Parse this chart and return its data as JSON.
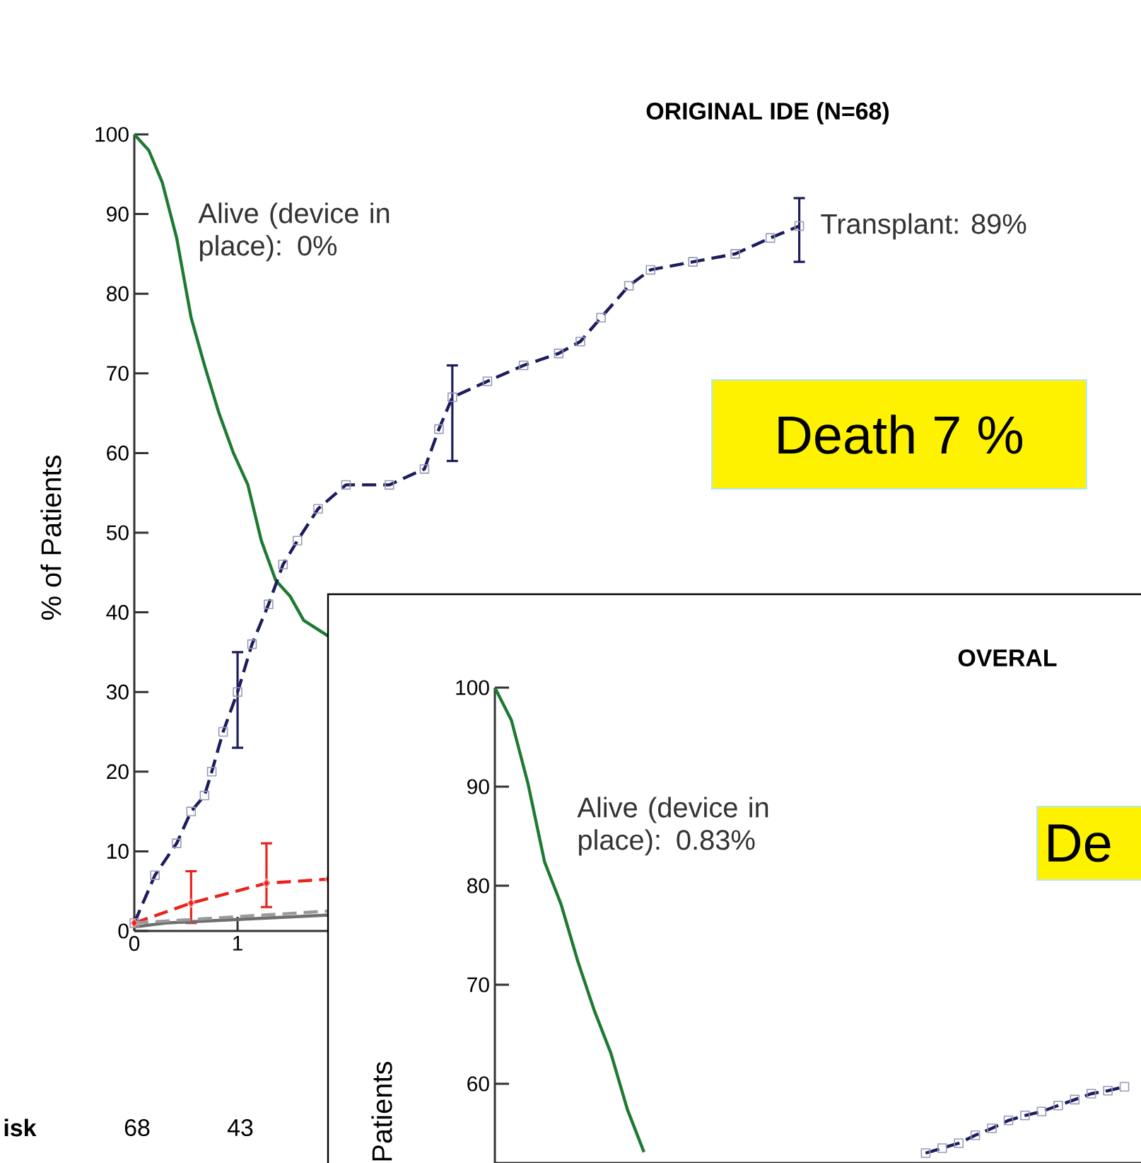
{
  "chart_data": [
    {
      "type": "line",
      "title": "ORIGINAL IDE (N=68)",
      "ylabel": "% of Patients",
      "xlim": [
        0,
        9.75
      ],
      "ylim": [
        0,
        100
      ],
      "xticks": [
        0,
        1
      ],
      "yticks": [
        0,
        10,
        20,
        30,
        40,
        50,
        60,
        70,
        80,
        90,
        100
      ],
      "annotations": [
        "Alive (device in place): 0%",
        "Transplant: 89%",
        "Death 7 %",
        "isk",
        "68",
        "43"
      ],
      "series": [
        {
          "color": "#1e7a32",
          "line_style": "solid",
          "marker": "none",
          "x": [
            0,
            0.14,
            0.27,
            0.41,
            0.55,
            0.68,
            0.82,
            0.96,
            1.1,
            1.23,
            1.37,
            1.51,
            1.64,
            1.88
          ],
          "values": [
            100,
            98,
            94,
            87,
            77,
            71,
            65,
            60,
            56,
            49,
            44,
            42,
            39,
            37
          ]
        },
        {
          "color": "#1c1c5e",
          "line_style": "dashed",
          "marker": "square",
          "x": [
            0,
            0.2,
            0.41,
            0.55,
            0.68,
            0.75,
            0.86,
            1.0,
            1.14,
            1.3,
            1.44,
            1.58,
            1.78,
            2.05,
            2.47,
            2.81,
            2.95,
            3.08,
            3.42,
            3.77,
            4.11,
            4.32,
            4.52,
            4.79,
            5.0,
            5.41,
            5.82,
            6.16,
            6.44
          ],
          "values": [
            1,
            7,
            11,
            15,
            17,
            20,
            25,
            30,
            36,
            41,
            46,
            49,
            53,
            56,
            56,
            58,
            63,
            67,
            69,
            71,
            72.5,
            74,
            77,
            81,
            83,
            84,
            85,
            87,
            88.5
          ],
          "errors": [
            null,
            null,
            null,
            null,
            null,
            null,
            null,
            [
              23,
              35
            ],
            null,
            null,
            null,
            null,
            null,
            null,
            null,
            null,
            null,
            [
              59,
              71
            ],
            null,
            null,
            null,
            null,
            null,
            null,
            null,
            null,
            null,
            null,
            [
              84,
              92
            ]
          ]
        },
        {
          "color": "#e8231e",
          "line_style": "dashed",
          "marker": "diamond",
          "x": [
            0,
            0.55,
            1.28,
            1.88
          ],
          "values": [
            1,
            3.5,
            6,
            6.5
          ],
          "errors": [
            null,
            [
              1,
              7.5
            ],
            [
              3,
              11
            ],
            null
          ]
        },
        {
          "color": "#6e6e6e",
          "line_style": "solid",
          "marker": "none",
          "x": [
            0,
            0.3,
            1.88
          ],
          "values": [
            0.5,
            1,
            2
          ]
        },
        {
          "color": "#9a9a9a",
          "line_style": "dashed",
          "marker": "none",
          "x": [
            0,
            1.88
          ],
          "values": [
            1,
            2.5
          ]
        }
      ]
    },
    {
      "type": "line",
      "title": "OVERAL",
      "ylabel": "Patients",
      "tick_labels": "y",
      "ylim": [
        52,
        100
      ],
      "yticks": [
        60,
        70,
        80,
        90,
        100
      ],
      "categories": [
        null,
        null,
        null,
        null,
        null,
        null,
        null,
        null,
        null,
        null,
        null,
        null,
        null,
        null,
        null,
        null,
        null,
        null,
        null,
        null,
        null,
        null,
        null,
        null,
        null,
        null,
        null,
        null,
        null,
        null,
        null,
        null,
        null,
        null,
        null,
        null,
        null,
        null,
        null,
        null
      ],
      "annotations": [
        "Alive (device in place): 0.83%",
        "De"
      ],
      "series": [
        {
          "color": "#1e7a32",
          "line_style": "solid",
          "marker": "none",
          "values": [
            100,
            96.7,
            90.3,
            82.4,
            78.1,
            72.4,
            67.4,
            63.1,
            57.4,
            53.1,
            null,
            null,
            null,
            null,
            null,
            null,
            null,
            null,
            null,
            null,
            null,
            null,
            null,
            null,
            null,
            null,
            null,
            null,
            null,
            null,
            null,
            null,
            null,
            null,
            null,
            null,
            null,
            null,
            null,
            null
          ]
        },
        {
          "color": "#1c1c5e",
          "line_style": "dashed",
          "marker": "square",
          "values": [
            null,
            null,
            null,
            null,
            null,
            null,
            null,
            null,
            null,
            null,
            null,
            null,
            null,
            null,
            null,
            null,
            null,
            null,
            null,
            null,
            null,
            null,
            null,
            null,
            null,
            null,
            53,
            53.5,
            54,
            54.8,
            55.5,
            56.3,
            56.8,
            57.2,
            57.8,
            58.4,
            59,
            59.3,
            59.7,
            null
          ]
        }
      ]
    }
  ]
}
